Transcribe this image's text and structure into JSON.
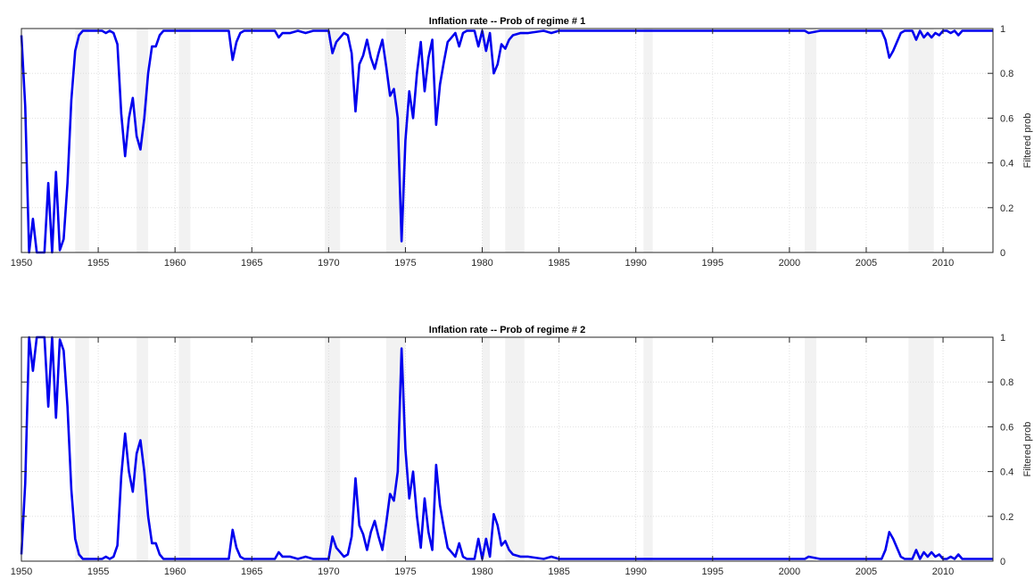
{
  "chart_data": [
    {
      "type": "line",
      "title": "Inflation rate -- Prob of regime # 1",
      "xlabel": "",
      "ylabel": "Filtered prob",
      "xlim": [
        1950,
        2013.25
      ],
      "ylim": [
        0,
        1
      ],
      "xticks": [
        1950,
        1955,
        1960,
        1965,
        1970,
        1975,
        1980,
        1985,
        1990,
        1995,
        2000,
        2005,
        2010
      ],
      "yticks": [
        0,
        0.2,
        0.4,
        0.6,
        0.8,
        1
      ],
      "ytick_labels": [
        "0",
        "0.2",
        "0.4",
        "0.6",
        "0.8",
        "1"
      ],
      "grid": true,
      "yaxis_location": "right",
      "line_color": "#0000ee",
      "shading_color": "#f2f2f2",
      "shaded_periods": [
        [
          1953.5,
          1954.4
        ],
        [
          1957.5,
          1958.25
        ],
        [
          1960.25,
          1961.0
        ],
        [
          1969.75,
          1970.75
        ],
        [
          1973.75,
          1975.0
        ],
        [
          1980.0,
          1980.5
        ],
        [
          1981.5,
          1982.75
        ],
        [
          1990.5,
          1991.1
        ],
        [
          2001.0,
          2001.75
        ],
        [
          2007.75,
          2009.4
        ]
      ],
      "series": [
        {
          "x": [
            1950.0,
            1950.25,
            1950.5,
            1950.75,
            1951.0,
            1951.25,
            1951.5,
            1951.75,
            1952.0,
            1952.25,
            1952.5,
            1952.75,
            1953.0,
            1953.25,
            1953.5,
            1953.75,
            1954.0,
            1954.25,
            1954.5,
            1954.75,
            1955.0,
            1955.25,
            1955.5,
            1955.75,
            1956.0,
            1956.25,
            1956.5,
            1956.75,
            1957.0,
            1957.25,
            1957.5,
            1957.75,
            1958.0,
            1958.25,
            1958.5,
            1958.75,
            1959.0,
            1959.25,
            1959.5,
            1959.75,
            1960.0,
            1960.5,
            1961.0,
            1962.0,
            1963.0,
            1963.5,
            1963.75,
            1964.0,
            1964.25,
            1964.5,
            1965.0,
            1966.0,
            1966.5,
            1966.75,
            1967.0,
            1967.5,
            1968.0,
            1968.5,
            1969.0,
            1969.5,
            1970.0,
            1970.25,
            1970.5,
            1970.75,
            1971.0,
            1971.25,
            1971.5,
            1971.75,
            1972.0,
            1972.25,
            1972.5,
            1972.75,
            1973.0,
            1973.25,
            1973.5,
            1973.75,
            1974.0,
            1974.25,
            1974.5,
            1974.75,
            1975.0,
            1975.25,
            1975.5,
            1975.75,
            1976.0,
            1976.25,
            1976.5,
            1976.75,
            1977.0,
            1977.25,
            1977.5,
            1977.75,
            1978.0,
            1978.25,
            1978.5,
            1978.75,
            1979.0,
            1979.25,
            1979.5,
            1979.75,
            1980.0,
            1980.25,
            1980.5,
            1980.75,
            1981.0,
            1981.25,
            1981.5,
            1981.75,
            1982.0,
            1982.5,
            1983.0,
            1984.0,
            1984.5,
            1985.0,
            1986.0,
            1987.0,
            1988.0,
            1989.0,
            1990.0,
            1991.0,
            1992.0,
            1995.0,
            1998.0,
            2000.0,
            2001.0,
            2001.25,
            2002.0,
            2003.0,
            2004.0,
            2005.0,
            2006.0,
            2006.25,
            2006.5,
            2006.75,
            2007.0,
            2007.25,
            2007.5,
            2007.75,
            2008.0,
            2008.25,
            2008.5,
            2008.75,
            2009.0,
            2009.25,
            2009.5,
            2009.75,
            2010.0,
            2010.25,
            2010.5,
            2010.75,
            2011.0,
            2011.25,
            2011.5,
            2011.75,
            2012.0,
            2012.5,
            2013.0,
            2013.25
          ],
          "values": [
            0.97,
            0.65,
            0.0,
            0.15,
            0.0,
            0.0,
            0.0,
            0.31,
            0.0,
            0.36,
            0.01,
            0.06,
            0.31,
            0.68,
            0.9,
            0.97,
            0.99,
            0.99,
            0.99,
            0.99,
            0.99,
            0.99,
            0.98,
            0.99,
            0.98,
            0.93,
            0.62,
            0.43,
            0.6,
            0.69,
            0.52,
            0.46,
            0.6,
            0.8,
            0.92,
            0.92,
            0.97,
            0.99,
            0.99,
            0.99,
            0.99,
            0.99,
            0.99,
            0.99,
            0.99,
            0.99,
            0.86,
            0.94,
            0.98,
            0.99,
            0.99,
            0.99,
            0.99,
            0.96,
            0.98,
            0.98,
            0.99,
            0.98,
            0.99,
            0.99,
            0.99,
            0.89,
            0.94,
            0.96,
            0.98,
            0.97,
            0.89,
            0.63,
            0.84,
            0.88,
            0.95,
            0.87,
            0.82,
            0.89,
            0.95,
            0.83,
            0.7,
            0.73,
            0.6,
            0.05,
            0.5,
            0.72,
            0.6,
            0.8,
            0.94,
            0.72,
            0.87,
            0.95,
            0.57,
            0.75,
            0.85,
            0.94,
            0.96,
            0.98,
            0.92,
            0.98,
            0.99,
            0.99,
            0.99,
            0.92,
            0.99,
            0.9,
            0.98,
            0.8,
            0.84,
            0.93,
            0.91,
            0.95,
            0.97,
            0.98,
            0.98,
            0.99,
            0.98,
            0.99,
            0.99,
            0.99,
            0.99,
            0.99,
            0.99,
            0.99,
            0.99,
            0.99,
            0.99,
            0.99,
            0.99,
            0.98,
            0.99,
            0.99,
            0.99,
            0.99,
            0.99,
            0.95,
            0.87,
            0.9,
            0.94,
            0.98,
            0.99,
            0.99,
            0.99,
            0.95,
            0.99,
            0.96,
            0.98,
            0.96,
            0.98,
            0.97,
            0.99,
            0.99,
            0.98,
            0.99,
            0.97,
            0.99,
            0.99,
            0.99,
            0.99,
            0.99,
            0.99,
            0.99
          ]
        }
      ]
    },
    {
      "type": "line",
      "title": "Inflation rate -- Prob of regime # 2",
      "xlabel": "",
      "ylabel": "Filtered prob",
      "xlim": [
        1950,
        2013.25
      ],
      "ylim": [
        0,
        1
      ],
      "xticks": [
        1950,
        1955,
        1960,
        1965,
        1970,
        1975,
        1980,
        1985,
        1990,
        1995,
        2000,
        2005,
        2010
      ],
      "yticks": [
        0,
        0.2,
        0.4,
        0.6,
        0.8,
        1
      ],
      "ytick_labels": [
        "0",
        "0.2",
        "0.4",
        "0.6",
        "0.8",
        "1"
      ],
      "grid": true,
      "yaxis_location": "right",
      "line_color": "#0000ee",
      "shading_color": "#f2f2f2",
      "shaded_periods": [
        [
          1953.5,
          1954.4
        ],
        [
          1957.5,
          1958.25
        ],
        [
          1960.25,
          1961.0
        ],
        [
          1969.75,
          1970.75
        ],
        [
          1973.75,
          1975.0
        ],
        [
          1980.0,
          1980.5
        ],
        [
          1981.5,
          1982.75
        ],
        [
          1990.5,
          1991.1
        ],
        [
          2001.0,
          2001.75
        ],
        [
          2007.75,
          2009.4
        ]
      ],
      "series": [
        {
          "x": [
            1950.0,
            1950.25,
            1950.5,
            1950.75,
            1951.0,
            1951.25,
            1951.5,
            1951.75,
            1952.0,
            1952.25,
            1952.5,
            1952.75,
            1953.0,
            1953.25,
            1953.5,
            1953.75,
            1954.0,
            1954.25,
            1954.5,
            1954.75,
            1955.0,
            1955.25,
            1955.5,
            1955.75,
            1956.0,
            1956.25,
            1956.5,
            1956.75,
            1957.0,
            1957.25,
            1957.5,
            1957.75,
            1958.0,
            1958.25,
            1958.5,
            1958.75,
            1959.0,
            1959.25,
            1959.5,
            1959.75,
            1960.0,
            1960.5,
            1961.0,
            1962.0,
            1963.0,
            1963.5,
            1963.75,
            1964.0,
            1964.25,
            1964.5,
            1965.0,
            1966.0,
            1966.5,
            1966.75,
            1967.0,
            1967.5,
            1968.0,
            1968.5,
            1969.0,
            1969.5,
            1970.0,
            1970.25,
            1970.5,
            1970.75,
            1971.0,
            1971.25,
            1971.5,
            1971.75,
            1972.0,
            1972.25,
            1972.5,
            1972.75,
            1973.0,
            1973.25,
            1973.5,
            1973.75,
            1974.0,
            1974.25,
            1974.5,
            1974.75,
            1975.0,
            1975.25,
            1975.5,
            1975.75,
            1976.0,
            1976.25,
            1976.5,
            1976.75,
            1977.0,
            1977.25,
            1977.5,
            1977.75,
            1978.0,
            1978.25,
            1978.5,
            1978.75,
            1979.0,
            1979.25,
            1979.5,
            1979.75,
            1980.0,
            1980.25,
            1980.5,
            1980.75,
            1981.0,
            1981.25,
            1981.5,
            1981.75,
            1982.0,
            1982.5,
            1983.0,
            1984.0,
            1984.5,
            1985.0,
            1986.0,
            1987.0,
            1988.0,
            1989.0,
            1990.0,
            1991.0,
            1992.0,
            1995.0,
            1998.0,
            2000.0,
            2001.0,
            2001.25,
            2002.0,
            2003.0,
            2004.0,
            2005.0,
            2006.0,
            2006.25,
            2006.5,
            2006.75,
            2007.0,
            2007.25,
            2007.5,
            2007.75,
            2008.0,
            2008.25,
            2008.5,
            2008.75,
            2009.0,
            2009.25,
            2009.5,
            2009.75,
            2010.0,
            2010.25,
            2010.5,
            2010.75,
            2011.0,
            2011.25,
            2011.5,
            2011.75,
            2012.0,
            2012.5,
            2013.0,
            2013.25
          ],
          "values": [
            0.03,
            0.35,
            1.0,
            0.85,
            1.0,
            1.0,
            1.0,
            0.69,
            1.0,
            0.64,
            0.99,
            0.94,
            0.69,
            0.32,
            0.1,
            0.03,
            0.01,
            0.01,
            0.01,
            0.01,
            0.01,
            0.01,
            0.02,
            0.01,
            0.02,
            0.07,
            0.38,
            0.57,
            0.4,
            0.31,
            0.48,
            0.54,
            0.4,
            0.2,
            0.08,
            0.08,
            0.03,
            0.01,
            0.01,
            0.01,
            0.01,
            0.01,
            0.01,
            0.01,
            0.01,
            0.01,
            0.14,
            0.06,
            0.02,
            0.01,
            0.01,
            0.01,
            0.01,
            0.04,
            0.02,
            0.02,
            0.01,
            0.02,
            0.01,
            0.01,
            0.01,
            0.11,
            0.06,
            0.04,
            0.02,
            0.03,
            0.11,
            0.37,
            0.16,
            0.12,
            0.05,
            0.13,
            0.18,
            0.11,
            0.05,
            0.17,
            0.3,
            0.27,
            0.4,
            0.95,
            0.5,
            0.28,
            0.4,
            0.2,
            0.06,
            0.28,
            0.13,
            0.05,
            0.43,
            0.25,
            0.15,
            0.06,
            0.04,
            0.02,
            0.08,
            0.02,
            0.01,
            0.01,
            0.01,
            0.1,
            0.01,
            0.1,
            0.02,
            0.21,
            0.16,
            0.07,
            0.09,
            0.05,
            0.03,
            0.02,
            0.02,
            0.01,
            0.02,
            0.01,
            0.01,
            0.01,
            0.01,
            0.01,
            0.01,
            0.01,
            0.01,
            0.01,
            0.01,
            0.01,
            0.01,
            0.02,
            0.01,
            0.01,
            0.01,
            0.01,
            0.01,
            0.05,
            0.13,
            0.1,
            0.06,
            0.02,
            0.01,
            0.01,
            0.01,
            0.05,
            0.01,
            0.04,
            0.02,
            0.04,
            0.02,
            0.03,
            0.01,
            0.01,
            0.02,
            0.01,
            0.03,
            0.01,
            0.01,
            0.01,
            0.01,
            0.01,
            0.01,
            0.01
          ]
        }
      ]
    }
  ]
}
